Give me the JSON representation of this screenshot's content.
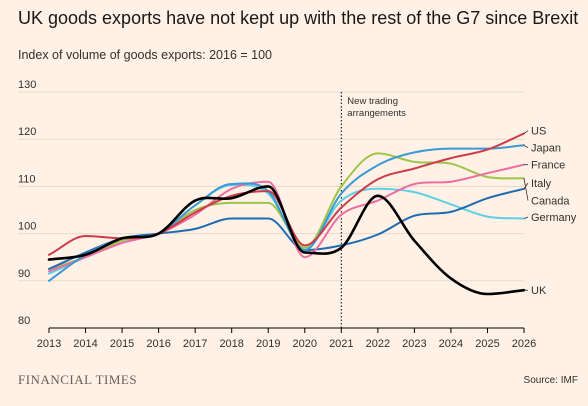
{
  "title": "UK goods exports have not kept up with the rest of the G7 since Brexit",
  "subtitle": "Index of volume of goods exports: 2016 = 100",
  "brand": "FINANCIAL TIMES",
  "source": "Source: IMF",
  "chart_data": {
    "type": "line",
    "x": [
      2013,
      2014,
      2015,
      2016,
      2017,
      2018,
      2019,
      2020,
      2021,
      2022,
      2023,
      2024,
      2025,
      2026
    ],
    "xlim": [
      2013,
      2026
    ],
    "ylim": [
      80,
      130
    ],
    "yticks": [
      80,
      90,
      100,
      110,
      120,
      130
    ],
    "grid": true,
    "annotation": {
      "x": 2021,
      "text": [
        "New trading",
        "arrangements"
      ]
    },
    "series": [
      {
        "name": "Germany",
        "color": "#5fcfe6",
        "width": 2,
        "values": [
          91.5,
          95.0,
          98.5,
          100.0,
          106.0,
          110.3,
          108.5,
          97.0,
          107.0,
          109.5,
          108.8,
          106.2,
          103.6,
          103.2
        ]
      },
      {
        "name": "Canada",
        "color": "#9ec54a",
        "width": 2,
        "values": [
          92.5,
          95.0,
          98.5,
          100.0,
          105.0,
          106.5,
          106.5,
          97.0,
          110.0,
          117.0,
          115.2,
          114.8,
          112.0,
          111.7
        ]
      },
      {
        "name": "Italy",
        "color": "#1f6cb0",
        "width": 2,
        "values": [
          92.5,
          96.0,
          99.0,
          100.0,
          101.0,
          103.2,
          103.2,
          96.5,
          97.5,
          99.8,
          103.8,
          104.6,
          107.5,
          109.5
        ]
      },
      {
        "name": "France",
        "color": "#eb6fa3",
        "width": 2,
        "values": [
          92.0,
          95.0,
          98.0,
          100.0,
          104.0,
          109.5,
          111.0,
          95.0,
          104.0,
          107.0,
          110.5,
          111.0,
          112.8,
          114.6
        ]
      },
      {
        "name": "Japan",
        "color": "#3b9ad6",
        "width": 2,
        "values": [
          90.0,
          95.5,
          99.0,
          100.0,
          106.0,
          110.5,
          109.0,
          96.5,
          108.5,
          114.5,
          117.2,
          118.0,
          118.0,
          118.7
        ]
      },
      {
        "name": "US",
        "color": "#cc3b4a",
        "width": 2,
        "values": [
          95.5,
          99.5,
          99.0,
          100.0,
          104.5,
          108.0,
          109.0,
          97.5,
          105.5,
          111.5,
          113.8,
          116.0,
          117.8,
          121.2
        ]
      },
      {
        "name": "UK",
        "color": "#000000",
        "width": 2.6,
        "values": [
          94.5,
          95.5,
          99.0,
          100.0,
          107.0,
          107.5,
          110.0,
          96.0,
          97.0,
          108.0,
          98.5,
          90.5,
          87.2,
          88.0
        ]
      }
    ],
    "labels": [
      {
        "series": "US",
        "text": "US",
        "y": 121.8
      },
      {
        "series": "Japan",
        "text": "Japan",
        "y": 118.2
      },
      {
        "series": "France",
        "text": "France",
        "y": 114.6
      },
      {
        "series": "Italy",
        "text": "Italy",
        "y": 110.7
      },
      {
        "series": "Canada",
        "text": "Canada",
        "y": 107.0
      },
      {
        "series": "Germany",
        "text": "Germany",
        "y": 103.5
      },
      {
        "series": "UK",
        "text": "UK",
        "y": 88.0
      }
    ]
  }
}
